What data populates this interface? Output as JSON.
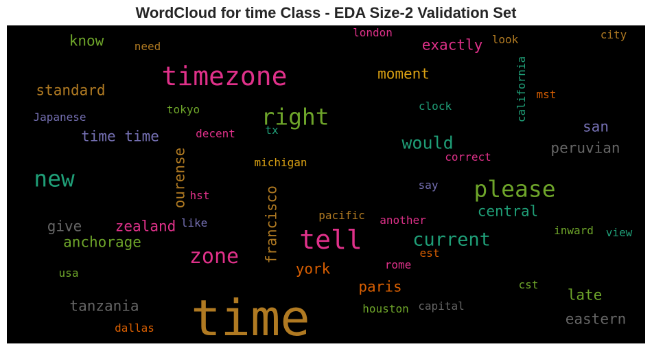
{
  "title": "WordCloud for time Class - EDA Size-2 Validation Set",
  "words": [
    {
      "text": "time",
      "color": "#b07a22"
    },
    {
      "text": "timezone",
      "color": "#e0318a"
    },
    {
      "text": "tell",
      "color": "#e0318a"
    },
    {
      "text": "please",
      "color": "#6ea52a"
    },
    {
      "text": "right",
      "color": "#6ea52a"
    },
    {
      "text": "new",
      "color": "#1f9e77"
    },
    {
      "text": "zone",
      "color": "#e0318a"
    },
    {
      "text": "current",
      "color": "#1f9e77"
    },
    {
      "text": "would",
      "color": "#1f9e77"
    },
    {
      "text": "moment",
      "color": "#d9a013"
    },
    {
      "text": "exactly",
      "color": "#e0318a"
    },
    {
      "text": "standard",
      "color": "#b07a22"
    },
    {
      "text": "know",
      "color": "#6ea52a"
    },
    {
      "text": "need",
      "color": "#b07a22"
    },
    {
      "text": "london",
      "color": "#e0318a"
    },
    {
      "text": "look",
      "color": "#b07a22"
    },
    {
      "text": "city",
      "color": "#b07a22"
    },
    {
      "text": "california",
      "color": "#1f9e77"
    },
    {
      "text": "mst",
      "color": "#d95f02"
    },
    {
      "text": "clock",
      "color": "#1f9e77"
    },
    {
      "text": "tokyo",
      "color": "#6ea52a"
    },
    {
      "text": "Japanese",
      "color": "#7570b3"
    },
    {
      "text": "time time",
      "color": "#7570b3"
    },
    {
      "text": "decent",
      "color": "#e0318a"
    },
    {
      "text": "tx",
      "color": "#1f9e77"
    },
    {
      "text": "san",
      "color": "#7570b3"
    },
    {
      "text": "peruvian",
      "color": "#666666"
    },
    {
      "text": "correct",
      "color": "#e0318a"
    },
    {
      "text": "michigan",
      "color": "#d9a013"
    },
    {
      "text": "ourense",
      "color": "#b07a22"
    },
    {
      "text": "francisco",
      "color": "#b07a22"
    },
    {
      "text": "hst",
      "color": "#e0318a"
    },
    {
      "text": "say",
      "color": "#7570b3"
    },
    {
      "text": "central",
      "color": "#1f9e77"
    },
    {
      "text": "give",
      "color": "#666666"
    },
    {
      "text": "zealand",
      "color": "#e0318a"
    },
    {
      "text": "like",
      "color": "#7570b3"
    },
    {
      "text": "pacific",
      "color": "#b07a22"
    },
    {
      "text": "another",
      "color": "#e0318a"
    },
    {
      "text": "anchorage",
      "color": "#6ea52a"
    },
    {
      "text": "inward",
      "color": "#6ea52a"
    },
    {
      "text": "view",
      "color": "#1f9e77"
    },
    {
      "text": "est",
      "color": "#d95f02"
    },
    {
      "text": "york",
      "color": "#d95f02"
    },
    {
      "text": "rome",
      "color": "#e0318a"
    },
    {
      "text": "usa",
      "color": "#6ea52a"
    },
    {
      "text": "paris",
      "color": "#d95f02"
    },
    {
      "text": "cst",
      "color": "#6ea52a"
    },
    {
      "text": "late",
      "color": "#6ea52a"
    },
    {
      "text": "tanzania",
      "color": "#666666"
    },
    {
      "text": "houston",
      "color": "#6ea52a"
    },
    {
      "text": "capital",
      "color": "#666666"
    },
    {
      "text": "eastern",
      "color": "#666666"
    },
    {
      "text": "dallas",
      "color": "#d95f02"
    }
  ]
}
